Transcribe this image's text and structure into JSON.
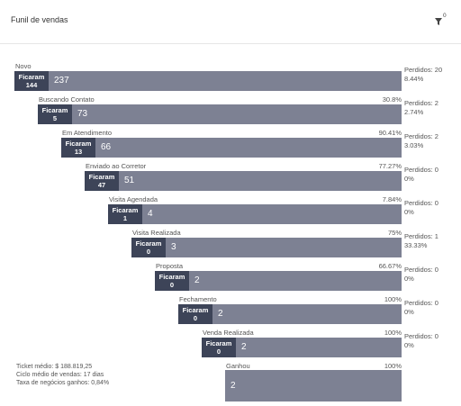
{
  "header": {
    "title": "Funil de vendas",
    "filter_count": "0"
  },
  "stages": [
    {
      "name": "Novo",
      "kept_label": "Ficaram",
      "kept": "144",
      "total": "237",
      "lost": "Perdidos: 20",
      "lost_pct": "8.44%"
    },
    {
      "name": "Buscando Contato",
      "pct": "30.8%",
      "kept_label": "Ficaram",
      "kept": "5",
      "total": "73",
      "lost": "Perdidos: 2",
      "lost_pct": "2.74%"
    },
    {
      "name": "Em Atendimento",
      "pct": "90.41%",
      "kept_label": "Ficaram",
      "kept": "13",
      "total": "66",
      "lost": "Perdidos: 2",
      "lost_pct": "3.03%"
    },
    {
      "name": "Enviado ao Corretor",
      "pct": "77.27%",
      "kept_label": "Ficaram",
      "kept": "47",
      "total": "51",
      "lost": "Perdidos: 0",
      "lost_pct": "0%"
    },
    {
      "name": "Visita Agendada",
      "pct": "7.84%",
      "kept_label": "Ficaram",
      "kept": "1",
      "total": "4",
      "lost": "Perdidos: 0",
      "lost_pct": "0%"
    },
    {
      "name": "Visita Realizada",
      "pct": "75%",
      "kept_label": "Ficaram",
      "kept": "0",
      "total": "3",
      "lost": "Perdidos: 1",
      "lost_pct": "33.33%"
    },
    {
      "name": "Proposta",
      "pct": "66.67%",
      "kept_label": "Ficaram",
      "kept": "0",
      "total": "2",
      "lost": "Perdidos: 0",
      "lost_pct": "0%"
    },
    {
      "name": "Fechamento",
      "pct": "100%",
      "kept_label": "Ficaram",
      "kept": "0",
      "total": "2",
      "lost": "Perdidos: 0",
      "lost_pct": "0%"
    },
    {
      "name": "Venda Realizada",
      "pct": "100%",
      "kept_label": "Ficaram",
      "kept": "0",
      "total": "2",
      "lost": "Perdidos: 0",
      "lost_pct": "0%"
    },
    {
      "name": "Ganhou",
      "pct": "100%",
      "total": "2"
    }
  ],
  "summary": [
    "Ticket médio: $ 188.819,25",
    "Ciclo médio de vendas: 17 dias",
    "Taxa de negócios ganhos: 0,84%"
  ]
}
